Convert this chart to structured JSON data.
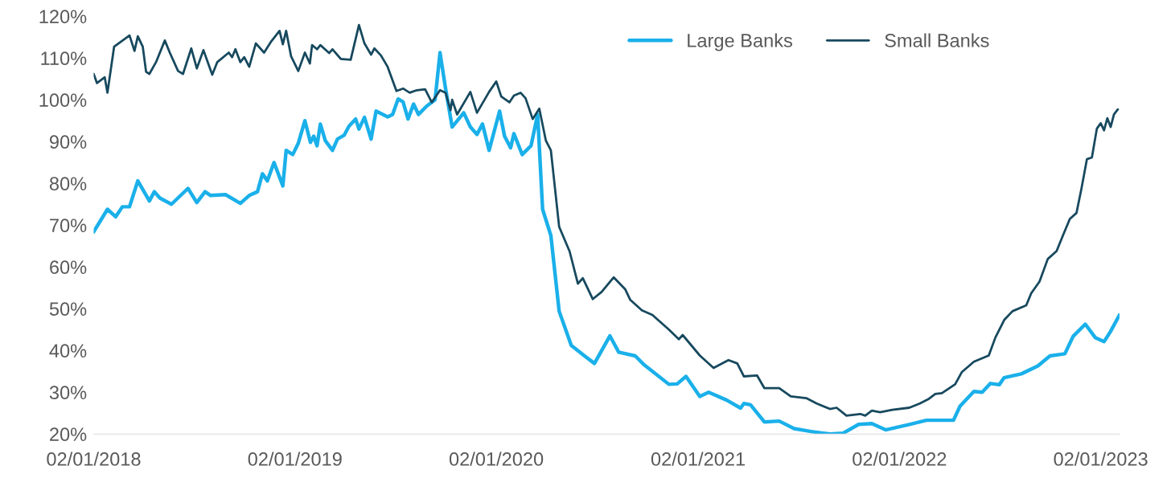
{
  "chart_data": {
    "type": "line",
    "xlim": [
      "2018-02-01",
      "2023-03-07"
    ],
    "xticks": [
      {
        "value": "2018-02-01",
        "label": "02/01/2018"
      },
      {
        "value": "2019-02-01",
        "label": "02/01/2019"
      },
      {
        "value": "2020-02-01",
        "label": "02/01/2020"
      },
      {
        "value": "2021-02-01",
        "label": "02/01/2021"
      },
      {
        "value": "2022-02-01",
        "label": "02/01/2022"
      },
      {
        "value": "2023-02-01",
        "label": "02/01/2023"
      }
    ],
    "ylim": [
      20,
      120
    ],
    "yticks": [
      {
        "value": 20,
        "label": "20%"
      },
      {
        "value": 30,
        "label": "30%"
      },
      {
        "value": 40,
        "label": "40%"
      },
      {
        "value": 50,
        "label": "50%"
      },
      {
        "value": 60,
        "label": "60%"
      },
      {
        "value": 70,
        "label": "70%"
      },
      {
        "value": 80,
        "label": "80%"
      },
      {
        "value": 90,
        "label": "90%"
      },
      {
        "value": 100,
        "label": "100%"
      },
      {
        "value": 110,
        "label": "110%"
      },
      {
        "value": 120,
        "label": "120%"
      }
    ],
    "grid": false,
    "legend": "top right",
    "marker": "none",
    "line_style": "solid",
    "series": [
      {
        "name": "Large Banks",
        "color": "#1ab0ea",
        "x": [
          "2018-02-01",
          "2018-02-26",
          "2018-03-13",
          "2018-03-25",
          "2018-04-07",
          "2018-04-22",
          "2018-05-13",
          "2018-05-22",
          "2018-06-01",
          "2018-06-22",
          "2018-07-22",
          "2018-08-07",
          "2018-08-22",
          "2018-09-01",
          "2018-09-28",
          "2018-10-25",
          "2018-11-10",
          "2018-11-25",
          "2018-12-04",
          "2018-12-13",
          "2018-12-25",
          "2019-01-10",
          "2019-01-16",
          "2019-01-28",
          "2019-02-07",
          "2019-02-19",
          "2019-03-01",
          "2019-03-07",
          "2019-03-13",
          "2019-03-19",
          "2019-03-28",
          "2019-04-10",
          "2019-04-19",
          "2019-05-01",
          "2019-05-10",
          "2019-05-22",
          "2019-05-28",
          "2019-06-07",
          "2019-06-19",
          "2019-06-28",
          "2019-07-19",
          "2019-07-28",
          "2019-08-07",
          "2019-08-16",
          "2019-08-25",
          "2019-09-04",
          "2019-09-13",
          "2019-09-28",
          "2019-10-13",
          "2019-10-22",
          "2019-11-01",
          "2019-11-13",
          "2019-12-04",
          "2019-12-16",
          "2019-12-28",
          "2020-01-07",
          "2020-01-19",
          "2020-02-07",
          "2020-02-16",
          "2020-02-27",
          "2020-03-04",
          "2020-03-19",
          "2020-04-04",
          "2020-04-16",
          "2020-04-25",
          "2020-05-10",
          "2020-05-25",
          "2020-06-16",
          "2020-07-10",
          "2020-07-28",
          "2020-08-25",
          "2020-09-10",
          "2020-10-10",
          "2020-10-25",
          "2020-12-10",
          "2020-12-25",
          "2021-01-10",
          "2021-02-04",
          "2021-02-20",
          "2021-03-25",
          "2021-04-19",
          "2021-04-25",
          "2021-05-07",
          "2021-06-01",
          "2021-06-28",
          "2021-07-25",
          "2021-08-25",
          "2021-09-28",
          "2021-10-22",
          "2021-11-19",
          "2021-12-13",
          "2022-01-07",
          "2022-02-19",
          "2022-03-22",
          "2022-05-10",
          "2022-05-22",
          "2022-06-16",
          "2022-07-01",
          "2022-07-16",
          "2022-08-01",
          "2022-08-10",
          "2022-09-10",
          "2022-10-10",
          "2022-11-01",
          "2022-11-28",
          "2022-12-13",
          "2023-01-04",
          "2023-01-22",
          "2023-02-07",
          "2023-02-19",
          "2023-03-07"
        ],
        "values": [
          68.4,
          73.8,
          72,
          74.4,
          74.4,
          80.6,
          75.8,
          78,
          76.5,
          75,
          78.8,
          75.4,
          78,
          77.1,
          77.3,
          75.2,
          77.1,
          78,
          82.3,
          80.6,
          85,
          79.4,
          87.9,
          86.9,
          89.6,
          95,
          89.8,
          91.3,
          89,
          94.2,
          90.2,
          87.9,
          90.6,
          91.5,
          93.7,
          95.4,
          93,
          95.8,
          90.6,
          97.3,
          95.9,
          96.5,
          100.2,
          99.5,
          95.4,
          99,
          96.5,
          98.5,
          100,
          111.3,
          102.7,
          93.5,
          96.9,
          93.5,
          91.7,
          94.2,
          87.9,
          97.3,
          91.3,
          88.5,
          91.9,
          86.9,
          89,
          96.5,
          73.8,
          67.5,
          49.4,
          41.2,
          38.7,
          36.9,
          43.5,
          39.6,
          38.7,
          36.7,
          31.9,
          32,
          33.8,
          29,
          30,
          28.1,
          26.2,
          27.3,
          27,
          22.9,
          23.1,
          21.3,
          20.6,
          20,
          20.2,
          22.3,
          22.5,
          21,
          22.3,
          23.3,
          23.3,
          26.7,
          30.2,
          30,
          32.1,
          31.8,
          33.5,
          34.4,
          36.3,
          38.7,
          39.2,
          43.4,
          46.3,
          43.1,
          42.1,
          44.6,
          48.5
        ]
      },
      {
        "name": "Small Banks",
        "color": "#17495e",
        "x": [
          "2018-02-01",
          "2018-02-07",
          "2018-02-21",
          "2018-02-26",
          "2018-03-10",
          "2018-04-07",
          "2018-04-16",
          "2018-04-22",
          "2018-05-01",
          "2018-05-07",
          "2018-05-13",
          "2018-05-25",
          "2018-06-10",
          "2018-06-19",
          "2018-07-04",
          "2018-07-13",
          "2018-07-28",
          "2018-08-07",
          "2018-08-19",
          "2018-09-04",
          "2018-09-13",
          "2018-10-04",
          "2018-10-10",
          "2018-10-16",
          "2018-10-25",
          "2018-11-01",
          "2018-11-10",
          "2018-11-22",
          "2018-12-07",
          "2018-12-19",
          "2019-01-04",
          "2019-01-10",
          "2019-01-16",
          "2019-01-25",
          "2019-02-07",
          "2019-02-19",
          "2019-02-28",
          "2019-03-04",
          "2019-03-13",
          "2019-03-19",
          "2019-04-04",
          "2019-04-10",
          "2019-04-25",
          "2019-05-13",
          "2019-05-28",
          "2019-06-07",
          "2019-06-19",
          "2019-06-25",
          "2019-07-07",
          "2019-07-19",
          "2019-08-04",
          "2019-08-16",
          "2019-08-28",
          "2019-09-10",
          "2019-09-25",
          "2019-10-07",
          "2019-10-22",
          "2019-11-01",
          "2019-11-10",
          "2019-11-13",
          "2019-11-22",
          "2019-12-16",
          "2019-12-28",
          "2020-01-19",
          "2020-02-01",
          "2020-02-10",
          "2020-02-25",
          "2020-03-04",
          "2020-03-16",
          "2020-03-25",
          "2020-04-07",
          "2020-04-19",
          "2020-05-01",
          "2020-05-10",
          "2020-05-25",
          "2020-06-13",
          "2020-06-28",
          "2020-07-07",
          "2020-07-25",
          "2020-08-10",
          "2020-09-01",
          "2020-09-22",
          "2020-10-01",
          "2020-10-22",
          "2020-11-10",
          "2020-12-10",
          "2020-12-28",
          "2021-01-04",
          "2021-02-04",
          "2021-03-01",
          "2021-03-28",
          "2021-04-13",
          "2021-04-25",
          "2021-05-19",
          "2021-06-01",
          "2021-06-28",
          "2021-07-19",
          "2021-08-16",
          "2021-09-04",
          "2021-09-28",
          "2021-10-10",
          "2021-10-28",
          "2021-11-22",
          "2021-12-01",
          "2021-12-13",
          "2021-12-28",
          "2022-01-19",
          "2022-02-19",
          "2022-03-10",
          "2022-03-25",
          "2022-04-07",
          "2022-04-19",
          "2022-05-13",
          "2022-05-25",
          "2022-06-16",
          "2022-07-13",
          "2022-07-25",
          "2022-08-10",
          "2022-08-25",
          "2022-09-19",
          "2022-09-28",
          "2022-10-13",
          "2022-10-28",
          "2022-11-13",
          "2022-11-25",
          "2022-12-07",
          "2022-12-19",
          "2022-12-28",
          "2023-01-07",
          "2023-01-16",
          "2023-01-25",
          "2023-02-01",
          "2023-02-07",
          "2023-02-13",
          "2023-02-19",
          "2023-02-25",
          "2023-03-04"
        ],
        "values": [
          106.2,
          104,
          105.4,
          101.7,
          112.7,
          115.4,
          111.7,
          115.2,
          112.7,
          106.7,
          106.2,
          109,
          114.2,
          111.3,
          106.9,
          106.2,
          112.3,
          107.5,
          111.9,
          106,
          109,
          111.3,
          110.2,
          112.1,
          109,
          110.2,
          107.9,
          113.5,
          111.3,
          113.8,
          116.5,
          113.3,
          116.5,
          110.4,
          106.9,
          111.3,
          108.7,
          113.1,
          112.1,
          113.1,
          111.2,
          112.1,
          109.8,
          109.6,
          117.9,
          113.5,
          110.8,
          112.3,
          110.6,
          107.9,
          102.1,
          102.7,
          101.7,
          102.3,
          102.5,
          99.4,
          102.3,
          101.7,
          97.5,
          100,
          96.5,
          101.9,
          96.9,
          101.9,
          104.4,
          100.8,
          99.4,
          101,
          101.7,
          100.4,
          95.4,
          97.9,
          90.2,
          87.9,
          69.6,
          63.7,
          56,
          57.3,
          52.3,
          54,
          57.5,
          54.6,
          52.1,
          49.6,
          48.5,
          45,
          42.7,
          43.7,
          38.8,
          35.8,
          37.7,
          36.9,
          33.8,
          34,
          31,
          31,
          29,
          28.6,
          27.3,
          26,
          26.3,
          24.4,
          24.8,
          24.4,
          25.6,
          25.2,
          25.8,
          26.3,
          27.3,
          28.3,
          29.6,
          29.8,
          31.9,
          34.8,
          37.3,
          38.8,
          43.1,
          47.3,
          49.4,
          50.8,
          53.7,
          56.5,
          61.9,
          63.8,
          67.7,
          71.5,
          72.9,
          78.7,
          85.8,
          86.2,
          93.1,
          94.4,
          92.7,
          95.6,
          93.5,
          96.5,
          97.7
        ]
      }
    ]
  }
}
